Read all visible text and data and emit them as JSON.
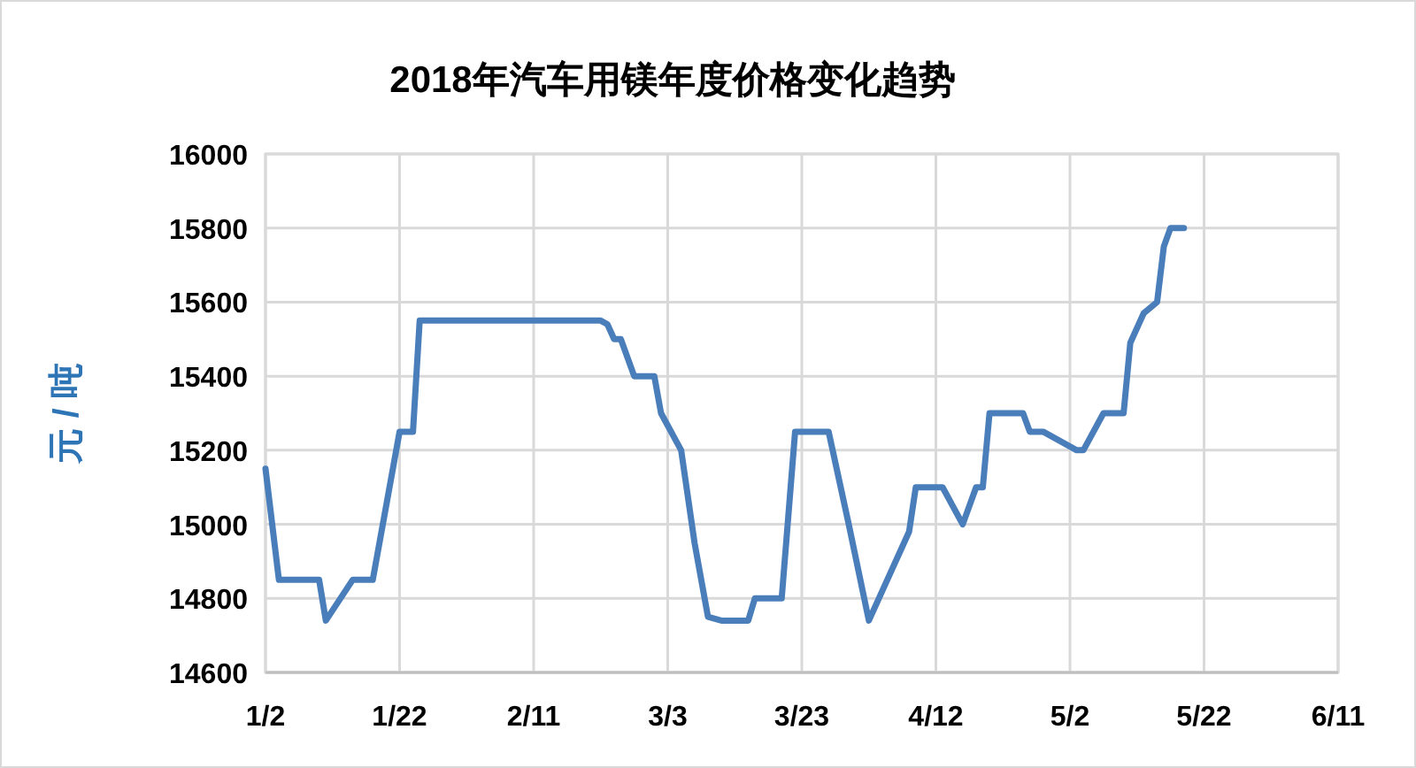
{
  "chart_data": {
    "type": "line",
    "title": "2018年汽车用镁年度价格变化趋势",
    "ylabel": "元 / 吨",
    "x": [
      "2018-01-02",
      "2018-01-04",
      "2018-01-10",
      "2018-01-11",
      "2018-01-15",
      "2018-01-18",
      "2018-01-22",
      "2018-01-24",
      "2018-01-25",
      "2018-02-21",
      "2018-02-22",
      "2018-02-23",
      "2018-02-24",
      "2018-02-26",
      "2018-03-01",
      "2018-03-02",
      "2018-03-05",
      "2018-03-07",
      "2018-03-09",
      "2018-03-11",
      "2018-03-15",
      "2018-03-16",
      "2018-03-20",
      "2018-03-22",
      "2018-03-27",
      "2018-03-30",
      "2018-04-02",
      "2018-04-08",
      "2018-04-09",
      "2018-04-13",
      "2018-04-16",
      "2018-04-18",
      "2018-04-19",
      "2018-04-20",
      "2018-04-25",
      "2018-04-26",
      "2018-04-28",
      "2018-05-03",
      "2018-05-04",
      "2018-05-07",
      "2018-05-10",
      "2018-05-11",
      "2018-05-13",
      "2018-05-15",
      "2018-05-16",
      "2018-05-17",
      "2018-05-19"
    ],
    "series": [
      {
        "color": "#4a7ebb",
        "values": [
          15150,
          14850,
          14850,
          14740,
          14850,
          14850,
          15250,
          15250,
          15550,
          15550,
          15540,
          15500,
          15500,
          15400,
          15400,
          15300,
          15200,
          14950,
          14750,
          14740,
          14740,
          14800,
          14800,
          15250,
          15250,
          15000,
          14740,
          14980,
          15100,
          15100,
          15000,
          15100,
          15100,
          15300,
          15300,
          15250,
          15250,
          15200,
          15200,
          15300,
          15300,
          15490,
          15570,
          15600,
          15750,
          15800,
          15800
        ]
      }
    ],
    "xlim": [
      "2018-01-02",
      "2018-06-11"
    ],
    "xticks": [
      {
        "value": "2018-01-02",
        "label": "1/2"
      },
      {
        "value": "2018-01-22",
        "label": "1/22"
      },
      {
        "value": "2018-02-11",
        "label": "2/11"
      },
      {
        "value": "2018-03-03",
        "label": "3/3"
      },
      {
        "value": "2018-03-23",
        "label": "3/23"
      },
      {
        "value": "2018-04-12",
        "label": "4/12"
      },
      {
        "value": "2018-05-02",
        "label": "5/2"
      },
      {
        "value": "2018-05-22",
        "label": "5/22"
      },
      {
        "value": "2018-06-11",
        "label": "6/11"
      }
    ],
    "ylim": [
      14600,
      16000
    ],
    "yticks": [
      14600,
      14800,
      15000,
      15200,
      15400,
      15600,
      15800,
      16000
    ],
    "grid": true,
    "marker": "none",
    "line_style": "solid"
  }
}
